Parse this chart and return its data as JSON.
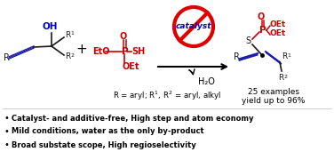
{
  "background_color": "#ffffff",
  "bullet_points": [
    "Catalyst- and additive-free, High step and atom economy",
    "Mild conditions, water as the only by-product",
    "Broad substate scope, High regioselectivity"
  ],
  "r_label": "R = aryl; R",
  "examples_line1": "25 examples",
  "examples_line2": "yield up to 96%",
  "h2o_label": "H₂O",
  "catalyst_label": "catalyst",
  "no_symbol_color": "#dd0000",
  "blue_color": "#0000cc",
  "red_color": "#cc0000",
  "black_color": "#000000",
  "dark_gray": "#1a1a1a",
  "alkyne_color": "#1a1aaa"
}
